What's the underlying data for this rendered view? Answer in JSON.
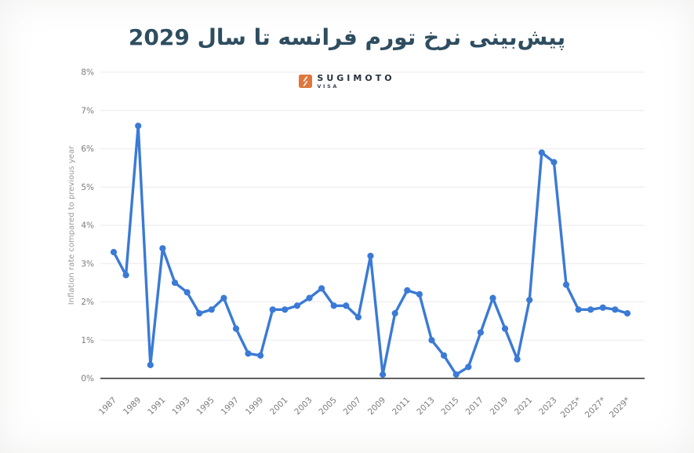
{
  "page": {
    "title": "پیش‌بینی نرخ تورم فرانسه تا سال 2029",
    "title_color": "#2e4d60",
    "brand": {
      "name": "SUGIMOTO",
      "sub": "VISA",
      "accent_color": "#e0763c"
    }
  },
  "chart_data": {
    "type": "line",
    "title": "پیش‌بینی نرخ تورم فرانسه تا سال 2029",
    "ylabel": "Inflation rate compared to previous year",
    "xlabel": "",
    "x": [
      1987,
      1988,
      1989,
      1990,
      1991,
      1992,
      1993,
      1994,
      1995,
      1996,
      1997,
      1998,
      1999,
      2000,
      2001,
      2002,
      2003,
      2004,
      2005,
      2006,
      2007,
      2008,
      2009,
      2010,
      2011,
      2012,
      2013,
      2014,
      2015,
      2016,
      2017,
      2018,
      2019,
      2020,
      2021,
      2022,
      2023,
      2024,
      2025,
      2026,
      2027,
      2028,
      2029
    ],
    "values": [
      3.3,
      2.7,
      6.6,
      0.35,
      3.4,
      2.5,
      2.25,
      1.7,
      1.8,
      2.1,
      1.3,
      0.65,
      0.6,
      1.8,
      1.8,
      1.9,
      2.1,
      2.35,
      1.9,
      1.9,
      1.6,
      3.2,
      0.1,
      1.7,
      2.3,
      2.2,
      1.0,
      0.6,
      0.1,
      0.3,
      1.2,
      2.1,
      1.3,
      0.5,
      2.05,
      5.9,
      5.65,
      2.45,
      1.8,
      1.8,
      1.85,
      1.8,
      1.7
    ],
    "ylim": [
      0,
      8
    ],
    "ytick_suffix": "%",
    "xtick_every": 2,
    "forecast_from": 2025,
    "forecast_marker": "*",
    "grid": "horizontal-only",
    "legend": null,
    "line_color": "#3b7ad6",
    "grid_color": "#ebebeb",
    "axis_color": "#2d2d2d",
    "tick_color": "#7c7c7c",
    "ylabel_color": "#9a9a9a"
  }
}
